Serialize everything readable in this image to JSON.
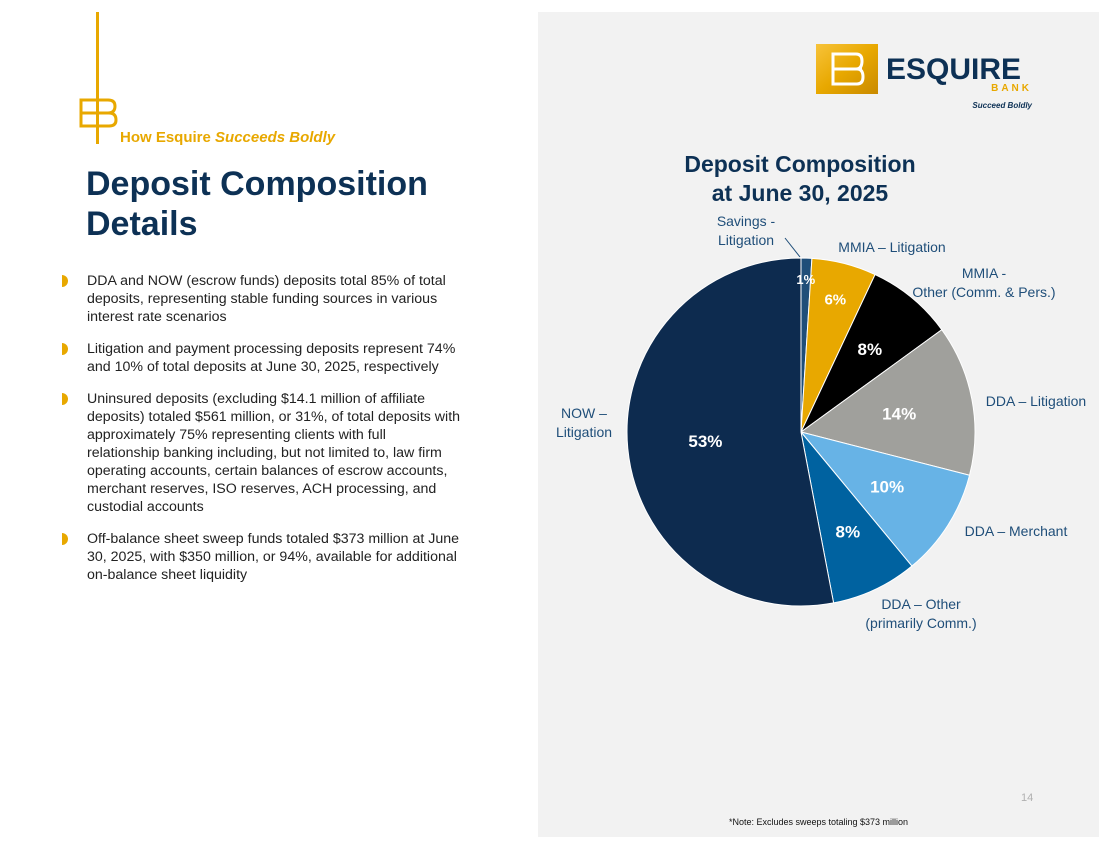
{
  "header": {
    "kicker_prefix": "How Esquire ",
    "kicker_emphasis": "Succeeds Boldly",
    "title": "Deposit Composition Details"
  },
  "bullets": [
    "DDA and NOW (escrow funds) deposits total 85% of total deposits, representing stable funding sources in various interest rate scenarios",
    "Litigation and payment processing deposits represent 74% and 10% of total deposits at June 30, 2025, respectively",
    "Uninsured deposits (excluding $14.1 million of affiliate deposits) totaled $561 million, or 31%, of total deposits with approximately 75% representing clients with full relationship banking including, but not limited to, law firm operating accounts, certain balances of escrow accounts, merchant reserves, ISO reserves, ACH processing, and custodial accounts",
    "Off-balance sheet sweep funds totaled $373 million at June 30, 2025, with $350 million, or 94%, available for additional on-balance sheet liquidity"
  ],
  "brand": {
    "name": "ESQUIRE",
    "sub": "BANK",
    "tagline": "Succeed Boldly",
    "monogram": "EB"
  },
  "colors": {
    "navy": "#0d3155",
    "gold": "#e8a800",
    "panel": "#f2f2f2"
  },
  "chart_data": {
    "type": "pie",
    "title_lines": [
      "Deposit Composition",
      "at June 30, 2025"
    ],
    "start_angle_deg": 0,
    "direction": "clockwise",
    "legend": "none",
    "slices": [
      {
        "label": [
          "Savings -",
          "Litigation"
        ],
        "value": 1,
        "data_label": "1%",
        "color": "#1f4e79",
        "label_color": "#ffffff"
      },
      {
        "label": [
          "MMIA – Litigation"
        ],
        "value": 6,
        "data_label": "6%",
        "color": "#e8a800",
        "label_color": "#ffffff"
      },
      {
        "label": [
          "MMIA -",
          "Other (Comm. & Pers.)"
        ],
        "value": 8,
        "data_label": "8%",
        "color": "#000000",
        "label_color": "#ffffff"
      },
      {
        "label": [
          "DDA – Litigation"
        ],
        "value": 14,
        "data_label": "14%",
        "color": "#a0a09c",
        "label_color": "#ffffff"
      },
      {
        "label": [
          "DDA – Merchant"
        ],
        "value": 10,
        "data_label": "10%",
        "color": "#67b3e6",
        "label_color": "#ffffff"
      },
      {
        "label": [
          "DDA – Other",
          "(primarily Comm.)"
        ],
        "value": 8,
        "data_label": "8%",
        "color": "#0062a0",
        "label_color": "#ffffff"
      },
      {
        "label": [
          "NOW –",
          "Litigation"
        ],
        "value": 53,
        "data_label": "53%",
        "color": "#0d2b4f",
        "label_color": "#ffffff"
      }
    ]
  },
  "page_number": "14",
  "footnote": "*Note: Excludes sweeps totaling $373 million"
}
